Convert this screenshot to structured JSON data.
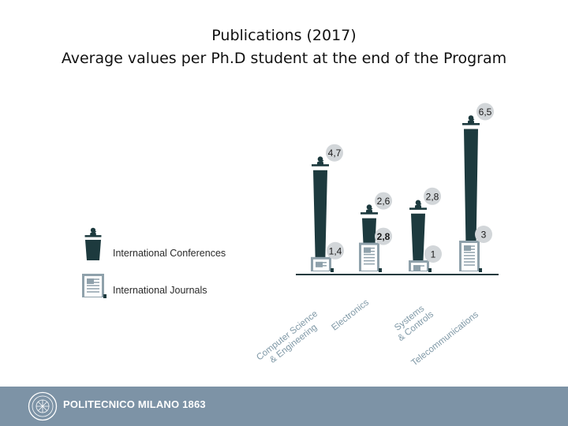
{
  "header": {
    "title": "Publications (2017)",
    "subtitle": "Average values per Ph.D student at the end of the Program"
  },
  "chart_data": {
    "type": "bar",
    "title": "Publications (2017)",
    "subtitle": "Average values per Ph.D student at the end of the Program",
    "categories": [
      "Computer Science & Engineering",
      "Electronics",
      "Systems & Controls",
      "Telecommunications"
    ],
    "series": [
      {
        "name": "International Conferences",
        "values": [
          4.7,
          2.6,
          2.8,
          6.5
        ],
        "labels": [
          "4,7",
          "2,6",
          "2,8",
          "6,5"
        ],
        "icon": "speaker-podium-icon"
      },
      {
        "name": "International Journals",
        "values": [
          1.4,
          2.8,
          1,
          3
        ],
        "labels": [
          "1,4",
          "2,8",
          "1",
          "3"
        ],
        "icon": "journal-document-icon"
      }
    ],
    "legend_position": "left",
    "grid": false,
    "colors": {
      "conference": "#1d3a3e",
      "journal": "#8fa1ab",
      "label_bubble": "#d2d6d9",
      "baseline": "#1d3a3e"
    }
  },
  "footer": {
    "institution": "POLITECNICO MILANO 1863",
    "background": "#7d93a6"
  }
}
